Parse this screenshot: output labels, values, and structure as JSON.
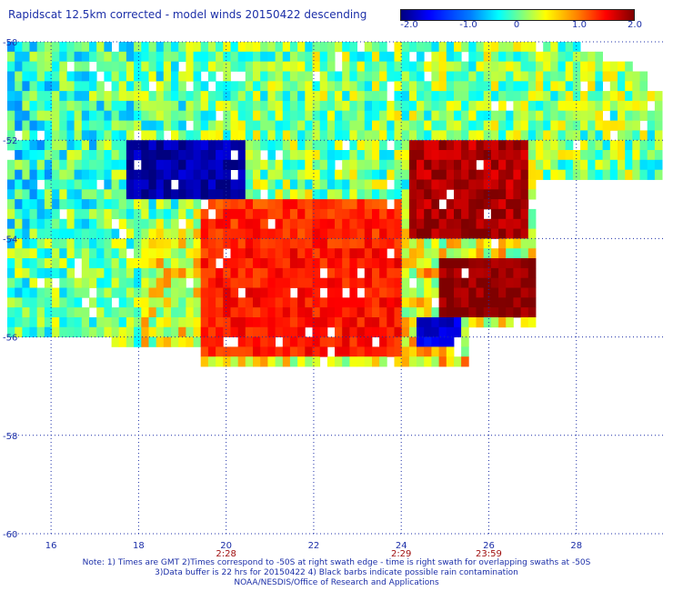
{
  "chart_data": {
    "type": "heatmap",
    "title": "Rapidscat 12.5km corrected - model winds 20150422 descending",
    "colorbar": {
      "min": -2.0,
      "max": 2.0,
      "ticks": [
        "-2.0",
        "-1.0",
        "0",
        "1.0",
        "2.0"
      ],
      "colors": [
        "#00007f",
        "#0000ff",
        "#007fff",
        "#00ffff",
        "#7fff7f",
        "#ffff00",
        "#ff7f00",
        "#ff0000",
        "#7f0000"
      ]
    },
    "xlim": [
      15,
      30
    ],
    "ylim": [
      -60,
      -50
    ],
    "x_ticks": [
      "16",
      "18",
      "20",
      "22",
      "24",
      "26",
      "28"
    ],
    "y_ticks": [
      "-50",
      "-52",
      "-54",
      "-56",
      "-58",
      "-60"
    ],
    "x_values": [
      16,
      18,
      20,
      22,
      24,
      26,
      28
    ],
    "y_values": [
      -50,
      -52,
      -54,
      -56,
      -58,
      -60
    ],
    "times": [
      {
        "x": 20,
        "label": "2:28"
      },
      {
        "x": 24,
        "label": "2:29"
      },
      {
        "x": 26,
        "label": "23:59"
      }
    ],
    "grid": true,
    "regions": [
      {
        "note": "strong negative",
        "x": [
          17.7,
          20.5
        ],
        "y": [
          -53.2,
          -52.1
        ],
        "value": -2.0
      },
      {
        "note": "strong positive",
        "x": [
          24.1,
          26.9
        ],
        "y": [
          -54.0,
          -52.0
        ],
        "value": 2.0
      },
      {
        "note": "strong positive",
        "x": [
          24.8,
          27.0
        ],
        "y": [
          -55.6,
          -54.4
        ],
        "value": 2.0
      },
      {
        "note": "strong negative",
        "x": [
          24.3,
          25.4
        ],
        "y": [
          -56.2,
          -55.6
        ],
        "value": -2.0
      },
      {
        "note": "positive",
        "x": [
          19.5,
          24.0
        ],
        "y": [
          -56.4,
          -53.2
        ],
        "value": 1.4
      }
    ]
  },
  "notes": [
    "Note: 1) Times are GMT 2)Times correspond to -50S at right swath edge - time is right swath for overlapping swaths at -50S",
    "3)Data buffer is 22 hrs for 20150422 4) Black barbs indicate possible rain contamination",
    "NOAA/NESDIS/Office of Research and Applications"
  ],
  "colors": {
    "text": "#1c2fa8",
    "time_labels": "#a01010",
    "grid": "#1c2fa8"
  }
}
